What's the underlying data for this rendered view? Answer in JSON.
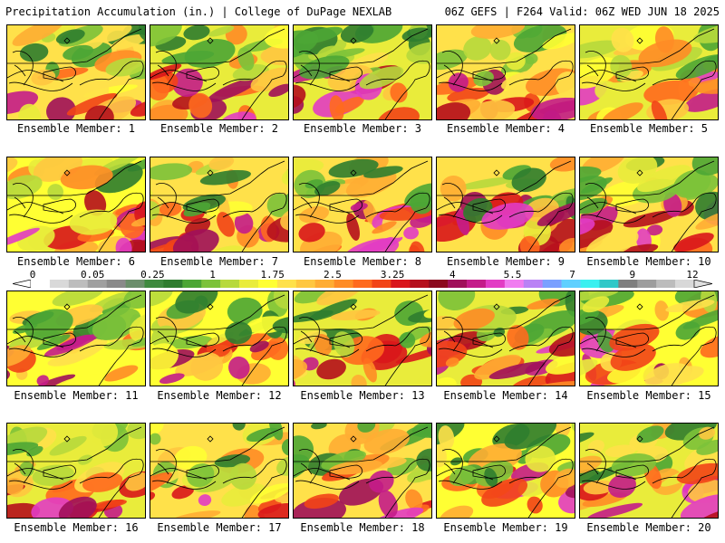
{
  "header": {
    "left": "Precipitation Accumulation (in.) | College of DuPage NEXLAB",
    "right": "06Z GEFS | F264 Valid: 06Z WED JUN 18 2025"
  },
  "panels": [
    {
      "label": "Ensemble Member: 1",
      "seed": 11
    },
    {
      "label": "Ensemble Member: 2",
      "seed": 27
    },
    {
      "label": "Ensemble Member: 3",
      "seed": 33
    },
    {
      "label": "Ensemble Member: 4",
      "seed": 41
    },
    {
      "label": "Ensemble Member: 5",
      "seed": 58
    },
    {
      "label": "Ensemble Member: 6",
      "seed": 63
    },
    {
      "label": "Ensemble Member: 7",
      "seed": 79
    },
    {
      "label": "Ensemble Member: 8",
      "seed": 84
    },
    {
      "label": "Ensemble Member: 9",
      "seed": 91
    },
    {
      "label": "Ensemble Member: 10",
      "seed": 102
    },
    {
      "label": "Ensemble Member: 11",
      "seed": 117
    },
    {
      "label": "Ensemble Member: 12",
      "seed": 123
    },
    {
      "label": "Ensemble Member: 13",
      "seed": 138
    },
    {
      "label": "Ensemble Member: 14",
      "seed": 144
    },
    {
      "label": "Ensemble Member: 15",
      "seed": 159
    },
    {
      "label": "Ensemble Member: 16",
      "seed": 161
    },
    {
      "label": "Ensemble Member: 17",
      "seed": 176
    },
    {
      "label": "Ensemble Member: 18",
      "seed": 182
    },
    {
      "label": "Ensemble Member: 19",
      "seed": 197
    },
    {
      "label": "Ensemble Member: 20",
      "seed": 205
    }
  ],
  "colorbar": {
    "labels": [
      "0",
      "0.05",
      "0.25",
      "1",
      "1.75",
      "2.5",
      "3.25",
      "4",
      "5.5",
      "7",
      "9",
      "12"
    ],
    "colors": [
      "#ffffff",
      "#d9d9d9",
      "#bdbdbd",
      "#a0a0a0",
      "#8a8a8a",
      "#6b8f6b",
      "#3e8a3e",
      "#2f7d2f",
      "#4ca635",
      "#7cc23a",
      "#b7d93c",
      "#e9ec3b",
      "#ffff33",
      "#ffe14a",
      "#ffc740",
      "#ffad33",
      "#ff8c26",
      "#ff6a1e",
      "#f24417",
      "#d9161b",
      "#b5101d",
      "#8c0a1e",
      "#a0105a",
      "#c41c8a",
      "#e23cc4",
      "#f07df0",
      "#b982f5",
      "#7aa0ff",
      "#5fd0ff",
      "#3af0f0",
      "#30c8c8",
      "#7f7f7f",
      "#9d9d9d",
      "#bcbcbc",
      "#d8d8d8"
    ],
    "ramp": [
      "#2f7d2f",
      "#4ca635",
      "#7cc23a",
      "#b7d93c",
      "#e9ec3b",
      "#ffff33",
      "#ffe14a",
      "#ffc740",
      "#ffad33",
      "#ff8c26",
      "#ff6a1e",
      "#f24417",
      "#d9161b",
      "#b5101d",
      "#a0105a",
      "#c41c8a",
      "#e23cc4"
    ]
  }
}
